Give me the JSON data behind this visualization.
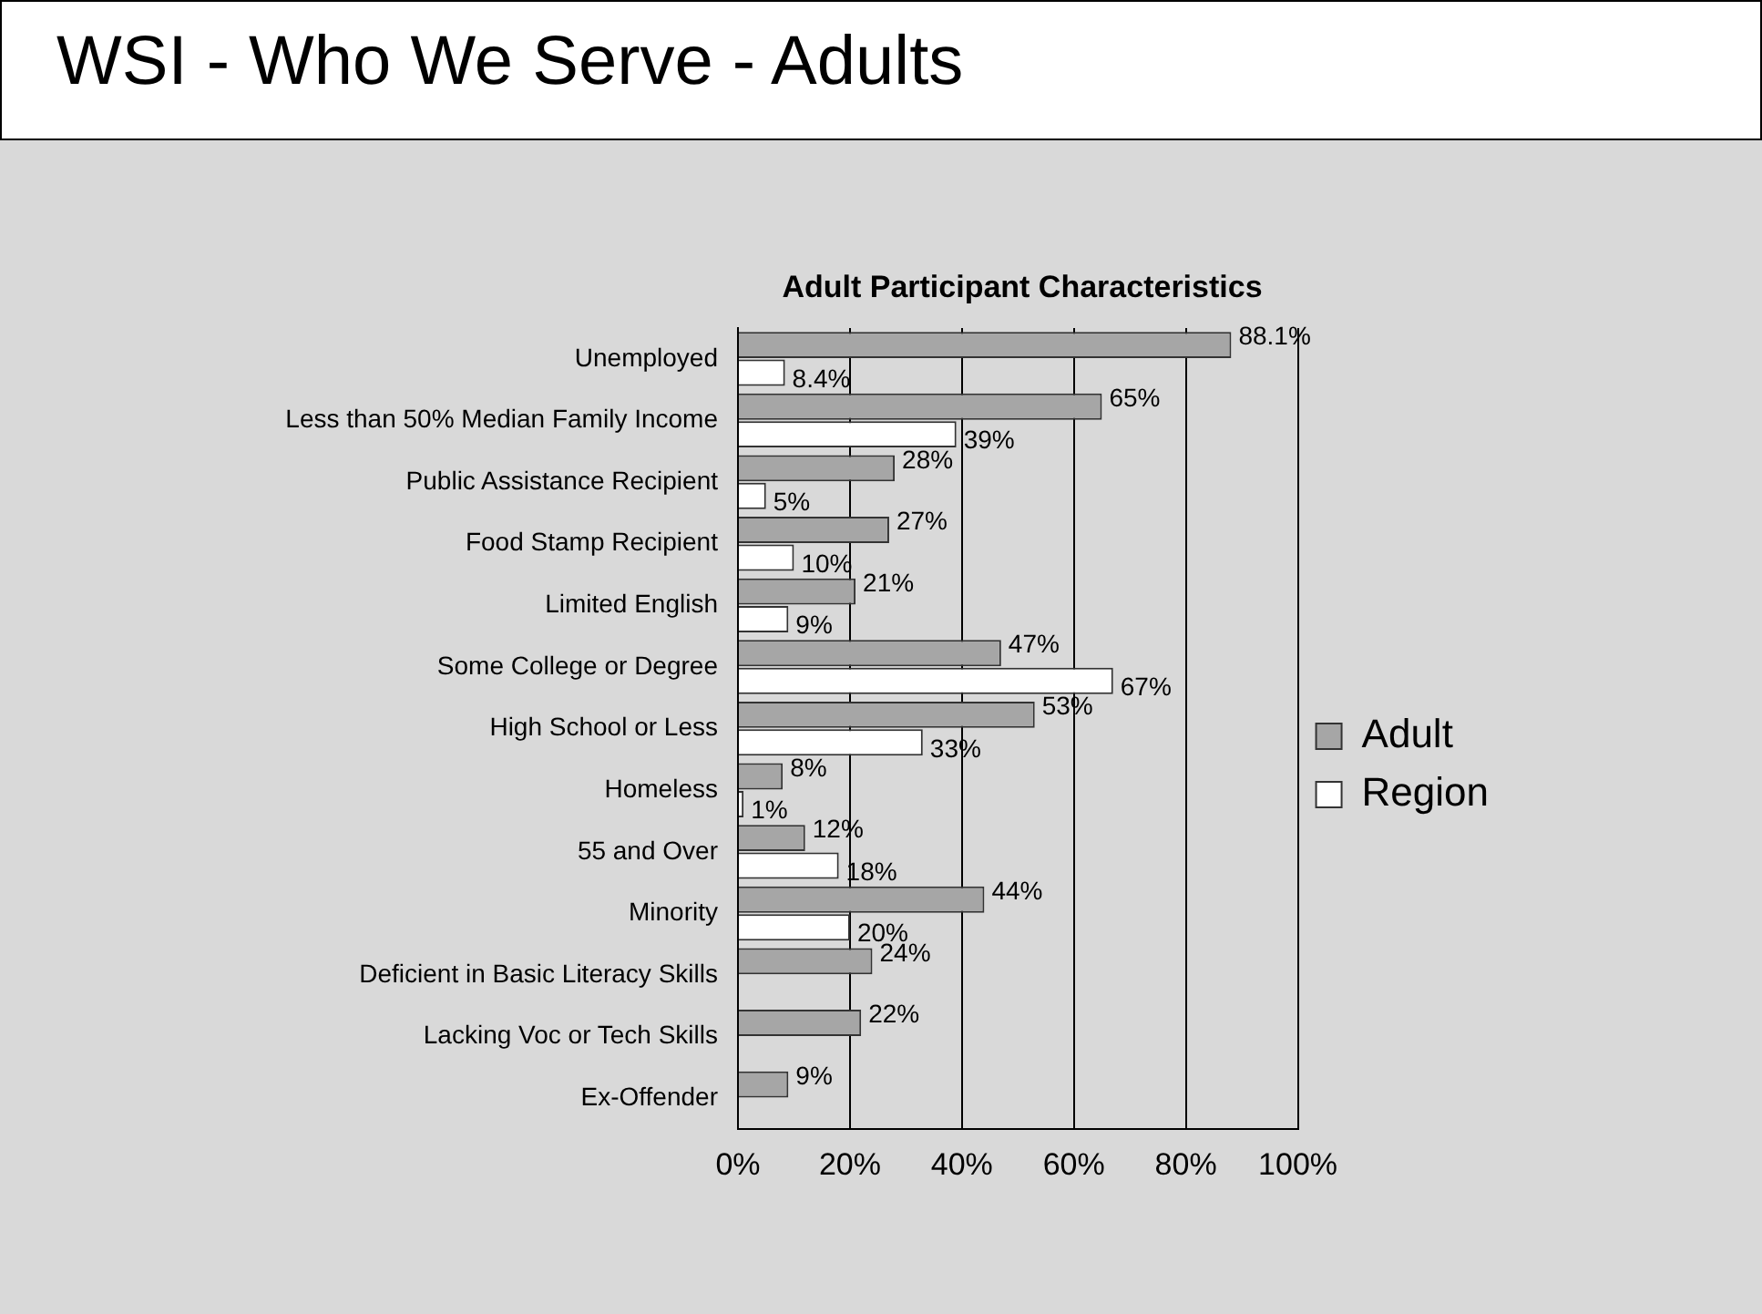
{
  "chart_data": {
    "type": "bar",
    "orientation": "horizontal",
    "title": "WSI - Who We Serve - Adults",
    "subtitle": "Adult Participant Characteristics",
    "categories": [
      "Unemployed",
      "Less than 50% Median Family Income",
      "Public Assistance Recipient",
      "Food Stamp Recipient",
      "Limited English",
      "Some College or Degree",
      "High School or Less",
      "Homeless",
      "55 and Over",
      "Minority",
      "Deficient in Basic Literacy Skills",
      "Lacking Voc or Tech Skills",
      "Ex-Offender"
    ],
    "series": [
      {
        "name": "Adult",
        "color": "#a6a6a6",
        "values": [
          88.1,
          65,
          28,
          27,
          21,
          47,
          53,
          8,
          12,
          44,
          24,
          22,
          9
        ],
        "value_labels": [
          "88.1%",
          "65%",
          "28%",
          "27%",
          "21%",
          "47%",
          "53%",
          "8%",
          "12%",
          "44%",
          "24%",
          "22%",
          "9%"
        ]
      },
      {
        "name": "Region",
        "color": "#ffffff",
        "values": [
          8.4,
          39,
          5,
          10,
          9,
          67,
          33,
          1,
          18,
          20,
          null,
          null,
          null
        ],
        "value_labels": [
          "8.4%",
          "39%",
          "5%",
          "10%",
          "9%",
          "67%",
          "33%",
          "1%",
          "18%",
          "20%",
          null,
          null,
          null
        ]
      }
    ],
    "xlim": [
      0,
      100
    ],
    "xticks": [
      {
        "value": 0,
        "label": "0%"
      },
      {
        "value": 20,
        "label": "20%"
      },
      {
        "value": 40,
        "label": "40%"
      },
      {
        "value": 60,
        "label": "60%"
      },
      {
        "value": 80,
        "label": "80%"
      },
      {
        "value": 100,
        "label": "100%"
      }
    ],
    "grid": "x",
    "legend": "right"
  }
}
